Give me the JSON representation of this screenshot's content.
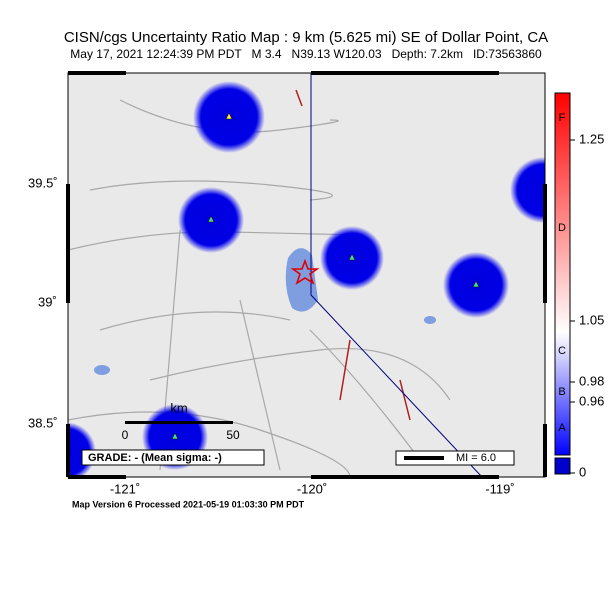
{
  "header": {
    "title": "CISN/cgs Uncertainty Ratio Map : 9 km (5.625 mi) SE of Dollar Point, CA",
    "subtitle": "May 17, 2021 12:24:39 PM PDT   M 3.4   N39.13 W120.03   Depth: 7.2km   ID:73563860"
  },
  "map": {
    "x_labels": [
      "-121˚",
      "-120˚",
      "-119˚"
    ],
    "y_labels": [
      "39.5˚",
      "39˚",
      "38.5˚"
    ],
    "scale": {
      "unit": "km",
      "start": "0",
      "end": "50"
    },
    "grade": "GRADE: - (Mean sigma: -)",
    "legend": "MI = 6.0"
  },
  "colorbar": {
    "grades": [
      "F",
      "D",
      "C",
      "B",
      "A"
    ],
    "ticks": [
      "1.25",
      "1.05",
      "0.98",
      "0.96",
      "0"
    ]
  },
  "footer": "Map Version 6 Processed 2021-05-19 01:03:30 PM PDT"
}
